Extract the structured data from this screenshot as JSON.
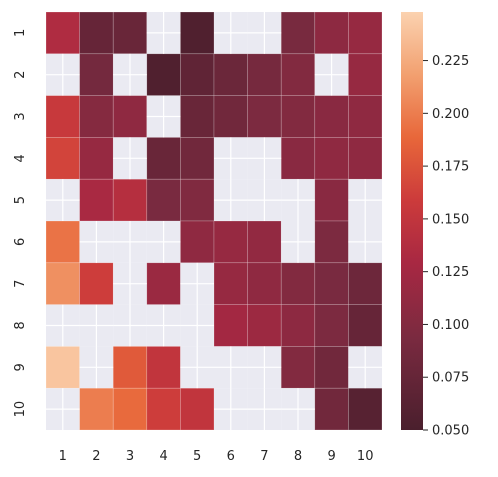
{
  "chart_data": {
    "type": "heatmap",
    "title": "",
    "xlabel": "",
    "ylabel": "",
    "x_categories": [
      "1",
      "2",
      "3",
      "4",
      "5",
      "6",
      "7",
      "8",
      "9",
      "10"
    ],
    "y_categories": [
      "1",
      "2",
      "3",
      "4",
      "5",
      "6",
      "7",
      "8",
      "9",
      "10"
    ],
    "values": [
      [
        0.135,
        0.075,
        0.078,
        null,
        0.055,
        null,
        null,
        0.092,
        0.108,
        0.115
      ],
      [
        null,
        0.088,
        null,
        0.055,
        0.07,
        0.08,
        0.09,
        0.1,
        null,
        0.115
      ],
      [
        0.155,
        0.102,
        0.11,
        null,
        0.078,
        0.085,
        0.095,
        0.1,
        0.105,
        0.11
      ],
      [
        0.165,
        0.115,
        null,
        0.078,
        0.085,
        null,
        null,
        0.105,
        0.11,
        0.11
      ],
      [
        null,
        0.13,
        0.14,
        0.093,
        0.098,
        null,
        null,
        null,
        0.105,
        null
      ],
      [
        0.195,
        null,
        null,
        null,
        0.11,
        0.115,
        0.112,
        null,
        0.095,
        null
      ],
      [
        0.21,
        0.16,
        null,
        0.118,
        null,
        0.115,
        0.11,
        0.1,
        0.093,
        0.082
      ],
      [
        null,
        null,
        null,
        null,
        null,
        0.125,
        0.12,
        0.108,
        0.095,
        0.075
      ],
      [
        0.24,
        null,
        0.18,
        0.15,
        null,
        null,
        null,
        0.1,
        0.085,
        null
      ],
      [
        null,
        0.2,
        0.19,
        0.16,
        0.15,
        null,
        null,
        null,
        0.085,
        0.062
      ]
    ],
    "colorbar": {
      "min": 0.05,
      "max": 0.248,
      "ticks": [
        0.05,
        0.075,
        0.1,
        0.125,
        0.15,
        0.175,
        0.2,
        0.225
      ],
      "tick_labels": [
        "0.050",
        "0.075",
        "0.100",
        "0.125",
        "0.150",
        "0.175",
        "0.200",
        "0.225"
      ],
      "colormap": "rocket-like"
    },
    "missing_color": "#eaeaf2",
    "grid": true
  }
}
